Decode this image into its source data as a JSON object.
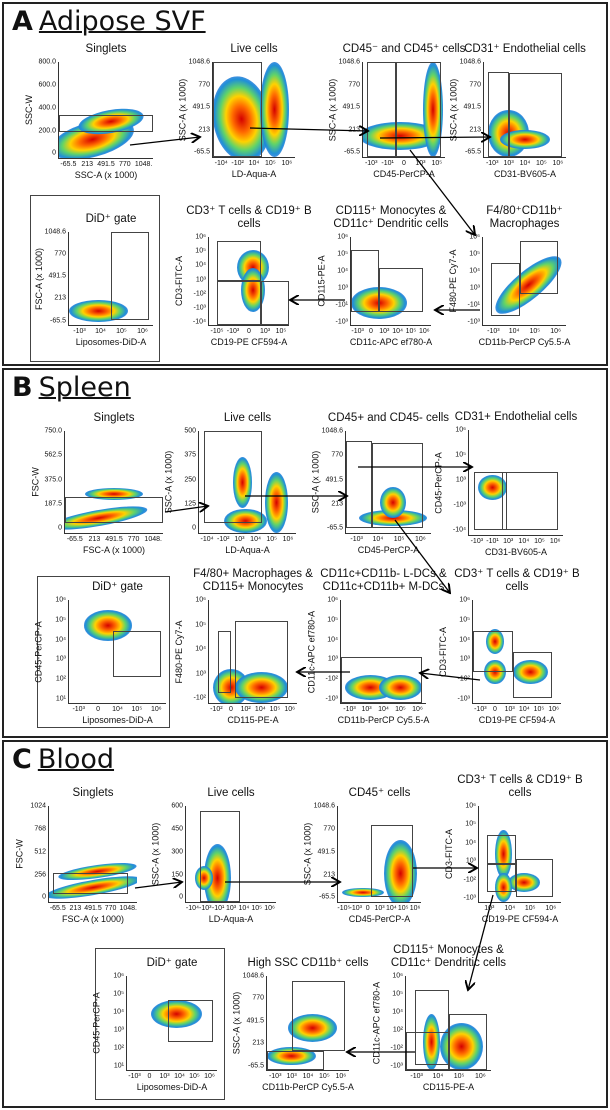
{
  "panels": [
    {
      "letter": "A",
      "name": "Adipose SVF"
    },
    {
      "letter": "B",
      "name": "Spleen"
    },
    {
      "letter": "C",
      "name": "Blood"
    }
  ],
  "colors": {
    "density_high": "#d40000",
    "density_mid": "#ffd200",
    "density_low": "#1f8fd8",
    "gate": "#444444",
    "arrow": "#000000"
  },
  "chart_data": [
    {
      "panel": "A",
      "type": "scatter",
      "title": "Singlets",
      "xlabel": "SSC-A (x 1000)",
      "ylabel": "SSC-W",
      "xticks": [
        "-65.5",
        "213",
        "491.5",
        "770",
        "1048."
      ],
      "yticks": [
        "0",
        "200.0",
        "400.0",
        "600.0",
        "800.0"
      ]
    },
    {
      "panel": "A",
      "type": "scatter",
      "title": "Live cells",
      "xlabel": "LD-Aqua-A",
      "ylabel": "SSC-A (x 1000)",
      "xticks": [
        "-10⁴",
        "-10²",
        "10⁴",
        "10⁵",
        "10⁶"
      ],
      "yticks": [
        "-65.5",
        "213",
        "491.5",
        "770",
        "1048.6"
      ]
    },
    {
      "panel": "A",
      "type": "scatter",
      "title": "CD45⁻ and CD45⁺ cells",
      "xlabel": "CD45-PerCP-A",
      "ylabel": "SSC-A (x 1000)",
      "xticks": [
        "-10³",
        "-10¹",
        "0",
        "10³",
        "10⁵"
      ],
      "yticks": [
        "-65.5",
        "213",
        "491.5",
        "770",
        "1048.6"
      ]
    },
    {
      "panel": "A",
      "type": "scatter",
      "title": "CD31⁺ Endothelial cells",
      "xlabel": "CD31-BV605-A",
      "ylabel": "SSC-A (x 1000)",
      "xticks": [
        "-10³",
        "10³",
        "10⁴",
        "10⁵",
        "10⁶"
      ],
      "yticks": [
        "-65.5",
        "213",
        "491.5",
        "770",
        "1048.6"
      ]
    },
    {
      "panel": "A",
      "type": "scatter",
      "title": "DiD⁺ gate",
      "xlabel": "Liposomes-DiD-A",
      "ylabel": "FSC-A (x 1000)",
      "xticks": [
        "-10³",
        "10⁴",
        "10⁵",
        "10⁶"
      ],
      "yticks": [
        "-65.5",
        "213",
        "491.5",
        "770",
        "1048.6"
      ]
    },
    {
      "panel": "A",
      "type": "scatter",
      "title": "CD3⁺ T cells & CD19⁺ B cells",
      "xlabel": "CD19-PE CF594-A",
      "ylabel": "CD3-FITC-A",
      "xticks": [
        "-10⁵",
        "-10³",
        "0",
        "10³",
        "10⁵"
      ],
      "yticks": [
        "-10⁴",
        "-10³",
        "-10²",
        "10³",
        "10⁴",
        "10⁵",
        "10⁶"
      ]
    },
    {
      "panel": "A",
      "type": "scatter",
      "title": "CD115⁺ Monocytes & CD11c⁺ Dendritic cells",
      "xlabel": "CD11c-APC ef780-A",
      "ylabel": "CD115-PE-A",
      "xticks": [
        "-10³",
        "0",
        "10³",
        "10⁴",
        "10⁵",
        "10⁶"
      ],
      "yticks": [
        "-10³",
        "-10¹",
        "10³",
        "10⁴",
        "10⁵",
        "10⁶"
      ]
    },
    {
      "panel": "A",
      "type": "scatter",
      "title": "F4/80⁺CD11b⁺ Macrophages",
      "xlabel": "CD11b-PerCP Cy5.5-A",
      "ylabel": "F480-PE Cy7-A",
      "xticks": [
        "-10³",
        "10⁴",
        "10⁵",
        "10⁶"
      ],
      "yticks": [
        "-10³",
        "-10¹",
        "10³",
        "10⁴",
        "10⁵",
        "10⁶"
      ]
    },
    {
      "panel": "B",
      "type": "scatter",
      "title": "Singlets",
      "xlabel": "FSC-A (x 1000)",
      "ylabel": "FSC-W",
      "xticks": [
        "-65.5",
        "213",
        "491.5",
        "770",
        "1048."
      ],
      "yticks": [
        "0",
        "187.5",
        "375.0",
        "562.5",
        "750.0"
      ]
    },
    {
      "panel": "B",
      "type": "scatter",
      "title": "Live cells",
      "xlabel": "LD-Aqua-A",
      "ylabel": "SSC-A (x 1000)",
      "xticks": [
        "-10⁴",
        "-10²",
        "10³",
        "10⁴",
        "10⁵",
        "10⁶"
      ],
      "yticks": [
        "0",
        "125",
        "250",
        "375",
        "500"
      ]
    },
    {
      "panel": "B",
      "type": "scatter",
      "title": "CD45+ and CD45- cells",
      "xlabel": "CD45-PerCP-A",
      "ylabel": "SSC-A (x 1000)",
      "xticks": [
        "-10³",
        "10⁴",
        "10⁵",
        "10⁶"
      ],
      "yticks": [
        "-65.5",
        "213",
        "491.5",
        "770",
        "1048.6"
      ]
    },
    {
      "panel": "B",
      "type": "scatter",
      "title": "CD31+ Endothelial cells",
      "xlabel": "CD31-BV605-A",
      "ylabel": "CD45-PerCP-A",
      "xticks": [
        "-10³",
        "-10¹",
        "10³",
        "10⁴",
        "10⁵",
        "10⁶"
      ],
      "yticks": [
        "-10⁴",
        "-10³",
        "10³",
        "10⁵",
        "10⁶"
      ]
    },
    {
      "panel": "B",
      "type": "scatter",
      "title": "DiD⁺ gate",
      "xlabel": "Liposomes-DiD-A",
      "ylabel": "CD45-PerCP-A",
      "xticks": [
        "-10³",
        "0",
        "10⁴",
        "10⁵",
        "10⁶"
      ],
      "yticks": [
        "10¹",
        "10²",
        "10³",
        "10⁴",
        "10⁵",
        "10⁶"
      ]
    },
    {
      "panel": "B",
      "type": "scatter",
      "title": "F4/80+ Macrophages & CD115+ Monocytes",
      "xlabel": "CD115-PE-A",
      "ylabel": "F480-PE Cy7-A",
      "xticks": [
        "-10²",
        "0",
        "10²",
        "10⁴",
        "10⁵",
        "10⁶"
      ],
      "yticks": [
        "-10²",
        "10³",
        "10⁴",
        "10⁵",
        "10⁶"
      ]
    },
    {
      "panel": "B",
      "type": "scatter",
      "title": "CD11c+CD11b- L-DCs & CD11c+CD11b+ M-DCs",
      "xlabel": "CD11b-PerCP Cy5.5-A",
      "ylabel": "CD11c-APC ef780-A",
      "xticks": [
        "-10³",
        "10³",
        "10⁴",
        "10⁵",
        "10⁶"
      ],
      "yticks": [
        "-10³",
        "-10²",
        "10³",
        "10⁴",
        "10⁵",
        "10⁶"
      ]
    },
    {
      "panel": "B",
      "type": "scatter",
      "title": "CD3⁺ T cells & CD19⁺ B cells",
      "xlabel": "CD19-PE CF594-A",
      "ylabel": "CD3-FITC-A",
      "xticks": [
        "-10³",
        "0",
        "10³",
        "10⁴",
        "10⁵",
        "10⁶"
      ],
      "yticks": [
        "-10³",
        "-10²",
        "10³",
        "10⁴",
        "10⁵",
        "10⁶"
      ]
    },
    {
      "panel": "C",
      "type": "scatter",
      "title": "Singlets",
      "xlabel": "FSC-A (x 1000)",
      "ylabel": "FSC-W",
      "xticks": [
        "-65.5",
        "213",
        "491.5",
        "770",
        "1048."
      ],
      "yticks": [
        "0",
        "256",
        "512",
        "768",
        "1024"
      ]
    },
    {
      "panel": "C",
      "type": "scatter",
      "title": "Live cells",
      "xlabel": "LD-Aqua-A",
      "ylabel": "SSC-A (x 1000)",
      "xticks": [
        "-10⁴",
        "-10³",
        "-10¹",
        "10³",
        "10⁴",
        "10⁵",
        "10⁶"
      ],
      "yticks": [
        "0",
        "150",
        "300",
        "450",
        "600"
      ]
    },
    {
      "panel": "C",
      "type": "scatter",
      "title": "CD45⁺ cells",
      "xlabel": "CD45-PerCP-A",
      "ylabel": "SSC-A (x 1000)",
      "xticks": [
        "-10⁵",
        "-10³",
        "0",
        "10³",
        "10⁴",
        "10⁵",
        "10⁶"
      ],
      "yticks": [
        "-65.5",
        "213",
        "491.5",
        "770",
        "1048.6"
      ]
    },
    {
      "panel": "C",
      "type": "scatter",
      "title": "CD3⁺ T cells & CD19⁺ B cells",
      "xlabel": "CD19-PE CF594-A",
      "ylabel": "CD3-FITC-A",
      "xticks": [
        "10³",
        "10⁴",
        "10⁵",
        "10⁶"
      ],
      "yticks": [
        "-10³",
        "-10²",
        "10³",
        "10⁴",
        "10⁵",
        "10⁶"
      ]
    },
    {
      "panel": "C",
      "type": "scatter",
      "title": "DiD⁺ gate",
      "xlabel": "Liposomes-DiD-A",
      "ylabel": "CD45-PerCP-A",
      "xticks": [
        "-10³",
        "0",
        "10³",
        "10⁴",
        "10⁵",
        "10⁶"
      ],
      "yticks": [
        "10¹",
        "10²",
        "10³",
        "10⁴",
        "10⁵",
        "10⁶"
      ]
    },
    {
      "panel": "C",
      "type": "scatter",
      "title": "High SSC CD11b⁺ cells",
      "xlabel": "CD11b-PerCP Cy5.5-A",
      "ylabel": "SSC-A (x 1000)",
      "xticks": [
        "-10³",
        "10³",
        "10⁴",
        "10⁵",
        "10⁶"
      ],
      "yticks": [
        "-65.5",
        "213",
        "491.5",
        "770",
        "1048.6"
      ]
    },
    {
      "panel": "C",
      "type": "scatter",
      "title": "CD115⁺ Monocytes & CD11c⁺ Dendritic cells",
      "xlabel": "CD115-PE-A",
      "ylabel": "CD11c-APC ef780-A",
      "xticks": [
        "-10³",
        "10⁴",
        "10⁵",
        "10⁶"
      ],
      "yticks": [
        "-10³",
        "-10²",
        "10²",
        "10⁴",
        "10⁵",
        "10⁶"
      ]
    }
  ]
}
